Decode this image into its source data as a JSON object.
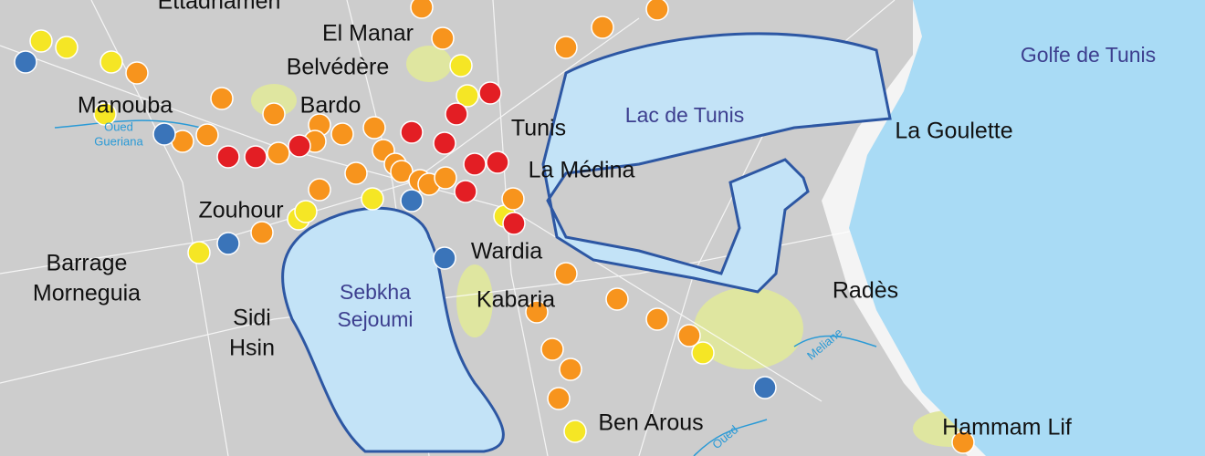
{
  "places": [
    {
      "lines": [
        "Ettadhamen"
      ]
    },
    {
      "lines": [
        "El Manar"
      ]
    },
    {
      "lines": [
        "Belvédère"
      ]
    },
    {
      "lines": [
        "Manouba"
      ]
    },
    {
      "lines": [
        "Bardo"
      ]
    },
    {
      "lines": [
        "Tunis"
      ]
    },
    {
      "lines": [
        "La Médina"
      ]
    },
    {
      "lines": [
        "La Goulette"
      ]
    },
    {
      "lines": [
        "Zouhour"
      ]
    },
    {
      "lines": [
        "Barrage",
        "Morneguia"
      ]
    },
    {
      "lines": [
        "Sidi",
        "Hsin"
      ]
    },
    {
      "lines": [
        "Wardia"
      ]
    },
    {
      "lines": [
        "Kabaria"
      ]
    },
    {
      "lines": [
        "Radès"
      ]
    },
    {
      "lines": [
        "Ben Arous"
      ]
    },
    {
      "lines": [
        "Hammam Lif"
      ]
    }
  ],
  "water": [
    {
      "lines": [
        "Lac de Tunis"
      ]
    },
    {
      "lines": [
        "Golfe de Tunis"
      ]
    },
    {
      "lines": [
        "Sebkha",
        "Sejoumi"
      ]
    }
  ],
  "rivers": [
    {
      "lines": [
        "Oued",
        "Gueriana"
      ]
    },
    {
      "lines": [
        "Meliane"
      ]
    },
    {
      "lines": [
        "Oued"
      ]
    }
  ]
}
